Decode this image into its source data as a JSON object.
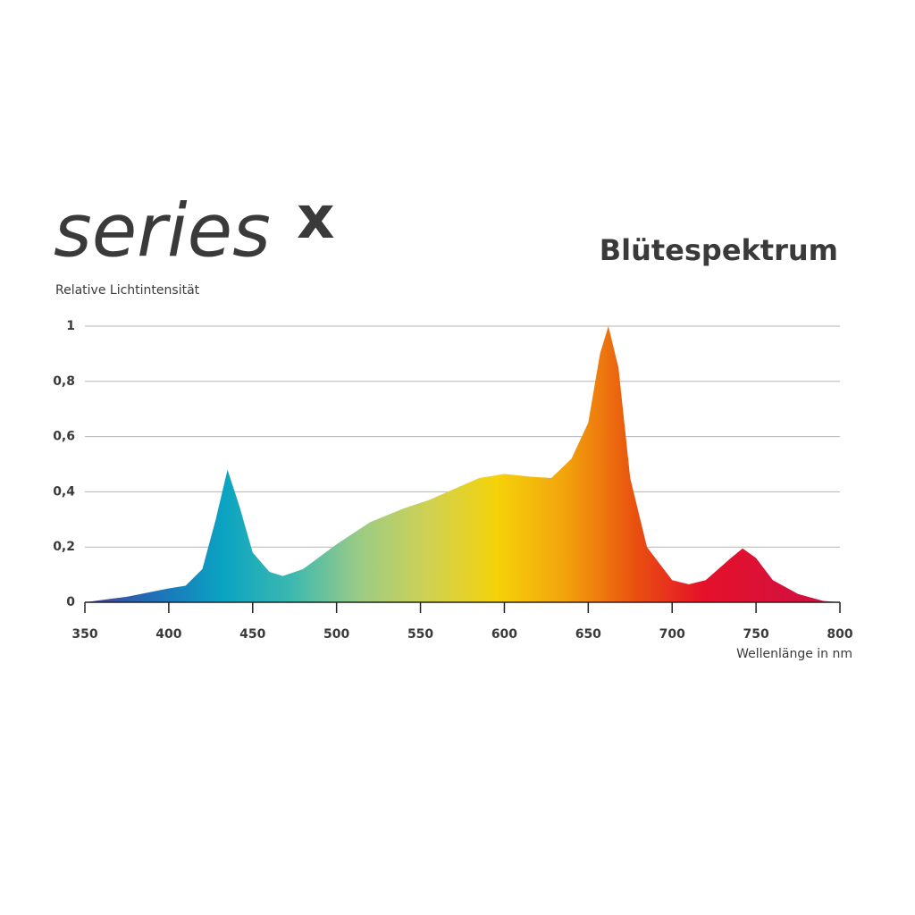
{
  "chart_data": {
    "type": "area",
    "brand": "series",
    "brand_mark": "x",
    "title": "Blütespektrum",
    "y_label": "Relative Lichtintensität",
    "x_label": "Wellenlänge in nm",
    "x": [
      350,
      375,
      400,
      410,
      420,
      428,
      435,
      442,
      450,
      460,
      468,
      480,
      500,
      520,
      540,
      555,
      570,
      585,
      600,
      615,
      628,
      640,
      650,
      657,
      662,
      668,
      675,
      685,
      700,
      710,
      720,
      735,
      742,
      750,
      760,
      775,
      790,
      800
    ],
    "values": [
      0,
      0.02,
      0.05,
      0.06,
      0.12,
      0.3,
      0.48,
      0.35,
      0.18,
      0.11,
      0.095,
      0.12,
      0.21,
      0.29,
      0.34,
      0.37,
      0.41,
      0.45,
      0.465,
      0.455,
      0.45,
      0.52,
      0.65,
      0.9,
      1,
      0.85,
      0.45,
      0.2,
      0.08,
      0.065,
      0.08,
      0.16,
      0.195,
      0.16,
      0.08,
      0.03,
      0.005,
      0
    ],
    "colors": [
      "#4a3d8f",
      "#1f6fb8",
      "#0aa3c2",
      "#3bb8b0",
      "#9ccb86",
      "#cfd152",
      "#f5d20a",
      "#f2a30c",
      "#e9520f",
      "#e5112a",
      "#d91138",
      "#c8123f"
    ],
    "xlim": [
      350,
      800
    ],
    "ylim": [
      0,
      1
    ],
    "xticks": [
      350,
      400,
      450,
      500,
      550,
      600,
      650,
      700,
      750,
      800
    ],
    "yticks": [
      0,
      {
        "value": 0.2,
        "label": "0,2"
      },
      {
        "value": 0.4,
        "label": "0,4"
      },
      {
        "value": 0.6,
        "label": "0,6"
      },
      {
        "value": 0.8,
        "label": "0,8"
      },
      1
    ],
    "grid": true
  }
}
